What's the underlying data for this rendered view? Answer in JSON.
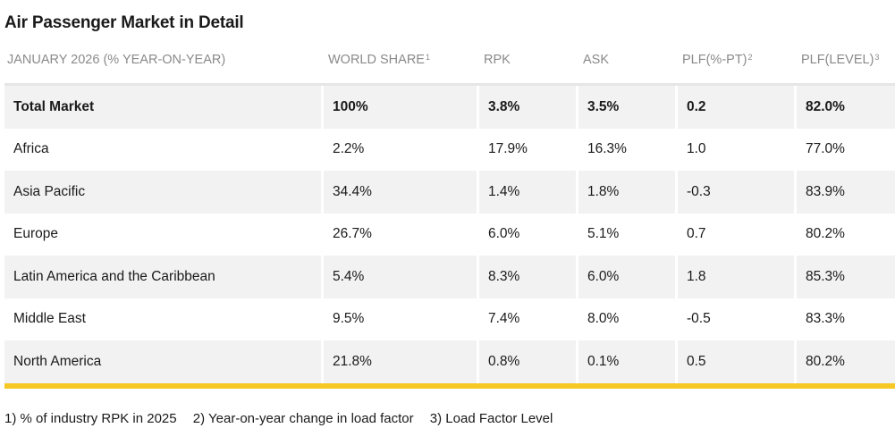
{
  "title": "Air Passenger Market in Detail",
  "headers": {
    "region": "JANUARY 2026 (% YEAR-ON-YEAR)",
    "world_share": "WORLD SHARE",
    "world_share_sup": "1",
    "rpk": "RPK",
    "ask": "ASK",
    "plf_pt": "PLF(%-PT)",
    "plf_pt_sup": "2",
    "plf_level": "PLF(LEVEL)",
    "plf_level_sup": "3"
  },
  "rows": [
    {
      "region": "Total Market",
      "world_share": "100%",
      "rpk": "3.8%",
      "ask": "3.5%",
      "plf_pt": "0.2",
      "plf_level": "82.0%"
    },
    {
      "region": "Africa",
      "world_share": "2.2%",
      "rpk": "17.9%",
      "ask": "16.3%",
      "plf_pt": "1.0",
      "plf_level": "77.0%"
    },
    {
      "region": "Asia Pacific",
      "world_share": "34.4%",
      "rpk": "1.4%",
      "ask": "1.8%",
      "plf_pt": "-0.3",
      "plf_level": "83.9%"
    },
    {
      "region": "Europe",
      "world_share": "26.7%",
      "rpk": "6.0%",
      "ask": "5.1%",
      "plf_pt": "0.7",
      "plf_level": "80.2%"
    },
    {
      "region": "Latin America and the Caribbean",
      "world_share": "5.4%",
      "rpk": "8.3%",
      "ask": "6.0%",
      "plf_pt": "1.8",
      "plf_level": "85.3%"
    },
    {
      "region": "Middle East",
      "world_share": "9.5%",
      "rpk": "7.4%",
      "ask": "8.0%",
      "plf_pt": "-0.5",
      "plf_level": "83.3%"
    },
    {
      "region": "North America",
      "world_share": "21.8%",
      "rpk": "0.8%",
      "ask": "0.1%",
      "plf_pt": "0.5",
      "plf_level": "80.2%"
    }
  ],
  "footnotes": {
    "f1": "1) % of industry RPK in 2025",
    "f2": "2) Year-on-year change in load factor",
    "f3": "3) Load Factor Level"
  },
  "colors": {
    "accent_bar": "#f5c825",
    "row_shade": "#f2f2f2",
    "header_text": "#8a8a8a"
  }
}
